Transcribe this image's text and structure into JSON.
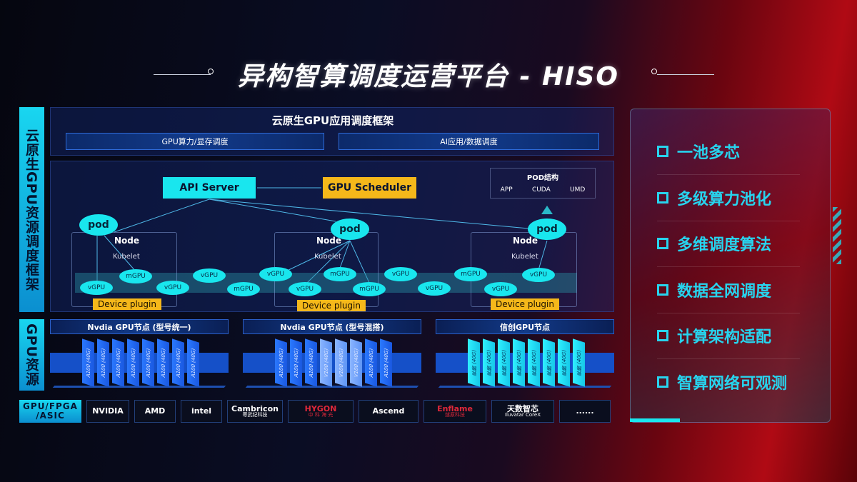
{
  "title": "异构智算调度运营平台 - HISO",
  "side_labels": {
    "framework": "云原生GPU资源调度框架",
    "resources": "GPU资源",
    "vendors": "GPU/FPGA /ASIC"
  },
  "app_layer": {
    "title": "云原生GPU应用调度框架",
    "items": [
      "GPU算力/显存调度",
      "AI应用/数据调度"
    ]
  },
  "control": {
    "api_server": "API Server",
    "gpu_scheduler": "GPU Scheduler"
  },
  "pod_structure": {
    "title": "POD结构",
    "items": [
      "APP",
      "CUDA",
      "UMD"
    ]
  },
  "nodes": [
    {
      "label": "Node",
      "kubelet": "Kubelet",
      "pod": "pod",
      "device_plugin": "Device plugin"
    },
    {
      "label": "Node",
      "kubelet": "Kubelet",
      "pod": "pod",
      "device_plugin": "Device plugin"
    },
    {
      "label": "Node",
      "kubelet": "Kubelet",
      "pod": "pod",
      "device_plugin": "Device plugin"
    }
  ],
  "gpus": [
    "vGPU",
    "mGPU",
    "vGPU",
    "vGPU",
    "mGPU",
    "vGPU",
    "vGPU",
    "mGPU",
    "mGPU",
    "vGPU",
    "vGPU",
    "mGPU",
    "vGPU",
    "vGPU"
  ],
  "gpu_groups": [
    {
      "title": "Nvdia GPU节点 (型号统一)",
      "chips": [
        "A100 (40G)",
        "A100 (40G)",
        "A100 (40G)",
        "A100 (40G)",
        "A100 (40G)",
        "A100 (40G)",
        "A100 (40G)",
        "A100 (40G)"
      ]
    },
    {
      "title": "Nvdia GPU节点 (型号混搭)",
      "chips": [
        "A100 (40G)",
        "A100 (40G)",
        "A100 (40G)",
        "V100 (40G)",
        "V100 (40G)",
        "V100 (40G)",
        "A100 (40G)",
        "A100 (40G)"
      ]
    },
    {
      "title": "信创GPU节点",
      "chips": [
        "昇腾 (40G)",
        "昇腾 (40G)",
        "昇腾 (40G)",
        "昇腾 (40G)",
        "昇腾 (40G)",
        "昇腾 (40G)",
        "昇腾 (40G)",
        "昇腾 (40G)"
      ]
    }
  ],
  "vendors": [
    {
      "name": "NVIDIA",
      "sub": ""
    },
    {
      "name": "AMD",
      "sub": ""
    },
    {
      "name": "intel",
      "sub": ""
    },
    {
      "name": "Cambricon",
      "sub": "寒武纪科技"
    },
    {
      "name": "HYGON",
      "sub": "中 科 海 光"
    },
    {
      "name": "Ascend",
      "sub": ""
    },
    {
      "name": "Enflame",
      "sub": "燧原科技"
    },
    {
      "name": "天数智芯",
      "sub": "Iluvatar CoreX"
    },
    {
      "name": "......",
      "sub": ""
    }
  ],
  "features": [
    "一池多芯",
    "多级算力池化",
    "多维调度算法",
    "数据全网调度",
    "计算架构适配",
    "智算网络可观测"
  ],
  "colors": {
    "cyan": "#19e6ee",
    "yellow": "#f5b81a",
    "blue": "#1550c8",
    "red": "#b00a14"
  }
}
